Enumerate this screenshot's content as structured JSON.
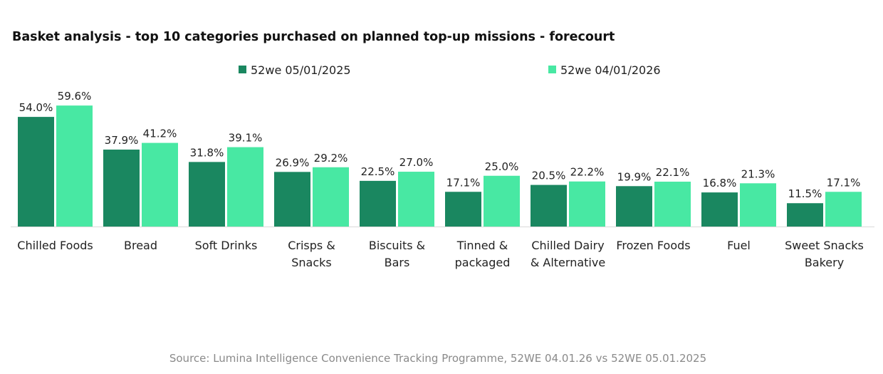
{
  "chart_data": {
    "type": "bar",
    "title": "Basket analysis - top 10 categories purchased on planned top-up missions - forecourt",
    "categories": [
      [
        "Chilled Foods"
      ],
      [
        "Bread"
      ],
      [
        "Soft Drinks"
      ],
      [
        "Crisps &",
        "Snacks"
      ],
      [
        "Biscuits &",
        "Bars"
      ],
      [
        "Tinned &",
        "packaged"
      ],
      [
        "Chilled Dairy",
        "& Alternative"
      ],
      [
        "Frozen Foods"
      ],
      [
        "Fuel"
      ],
      [
        "Sweet Snacks",
        "Bakery"
      ]
    ],
    "series": [
      {
        "name": "52we 05/01/2025",
        "color": "#1a8760",
        "values": [
          54.0,
          37.9,
          31.8,
          26.9,
          22.5,
          17.1,
          20.5,
          19.9,
          16.8,
          11.5
        ]
      },
      {
        "name": "52we 04/01/2026",
        "color": "#48e8a3",
        "values": [
          59.6,
          41.2,
          39.1,
          29.2,
          27.0,
          25.0,
          22.2,
          22.1,
          21.3,
          17.1
        ]
      }
    ],
    "value_format": "percent, 1 decimal",
    "ylim": [
      0,
      60
    ],
    "legend_position": "top",
    "grid": false,
    "xlabel": "",
    "ylabel": ""
  },
  "source": "Source: Lumina Intelligence Convenience Tracking Programme, 52WE 04.01.26 vs 52WE 05.01.2025"
}
